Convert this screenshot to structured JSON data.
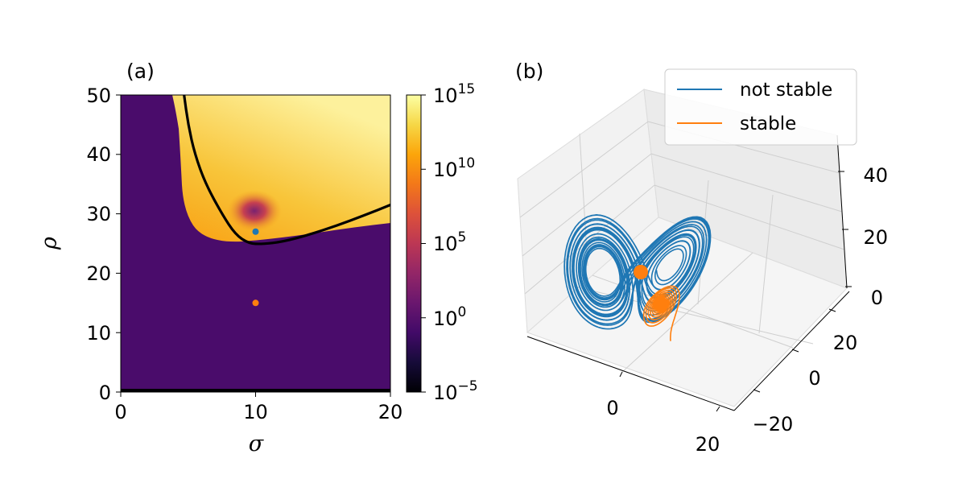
{
  "chart_data": [
    {
      "panel": "(a)",
      "type": "heatmap",
      "xlabel": "σ",
      "ylabel": "ρ",
      "xlim": [
        0,
        20
      ],
      "ylim": [
        0,
        50
      ],
      "x_ticks": [
        "0",
        "10",
        "20"
      ],
      "y_ticks": [
        "0",
        "10",
        "20",
        "30",
        "40",
        "50"
      ],
      "colorbar": {
        "scale": "log",
        "range": [
          1e-05,
          1000000000000000.0
        ],
        "colormap": "inferno",
        "tick_bases": [
          "10",
          "10",
          "10",
          "10",
          "10"
        ],
        "tick_exponents": [
          "−5",
          "0",
          "5",
          "10",
          "15"
        ]
      },
      "boundary_curve": {
        "color": "#000000",
        "points": [
          [
            4.7,
            50
          ],
          [
            5.0,
            45
          ],
          [
            5.5,
            40
          ],
          [
            6.3,
            35
          ],
          [
            7.5,
            30
          ],
          [
            8.5,
            26.5
          ],
          [
            9.5,
            25
          ],
          [
            10.5,
            24.9
          ],
          [
            12,
            25.3
          ],
          [
            14,
            26.5
          ],
          [
            16,
            28
          ],
          [
            18,
            29.7
          ],
          [
            20,
            31.5
          ]
        ]
      },
      "markers": [
        {
          "name": "not stable",
          "sigma": 10,
          "rho": 27,
          "color": "#1f77b4"
        },
        {
          "name": "stable",
          "sigma": 10,
          "rho": 15,
          "color": "#ff7f0e"
        }
      ]
    },
    {
      "panel": "(b)",
      "type": "line",
      "projection": "3d",
      "series": [
        {
          "name": "not stable",
          "color": "#1f77b4"
        },
        {
          "name": "stable",
          "color": "#ff7f0e"
        }
      ],
      "x_ticks": [
        "0",
        "20"
      ],
      "y_ticks": [
        "−20",
        "0",
        "20"
      ],
      "z_ticks": [
        "0",
        "20",
        "40"
      ],
      "legend_position": "top-right"
    }
  ]
}
